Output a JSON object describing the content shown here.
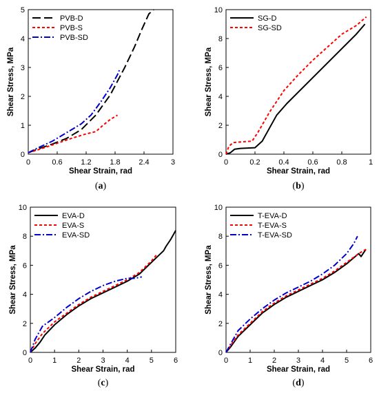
{
  "chart_data": [
    {
      "id": "a",
      "type": "line",
      "caption_letter": "a",
      "xlabel": "Shear Strain, rad",
      "ylabel": "Shear Stress, MPa",
      "xlim": [
        0,
        3
      ],
      "ylim": [
        0,
        5
      ],
      "xticks": [
        0,
        0.6,
        1.2,
        1.8,
        2.4,
        3
      ],
      "xtick_labels": [
        "0",
        "0.6",
        "1.2",
        "1.8",
        "2.4",
        "3"
      ],
      "yticks": [
        0,
        1,
        2,
        3,
        4,
        5
      ],
      "ytick_labels": [
        "0",
        "1",
        "2",
        "3",
        "4",
        "5"
      ],
      "legend_position": "top-left",
      "series": [
        {
          "name": "PVB-D",
          "color": "#000000",
          "dash": "long",
          "x": [
            0,
            0.2,
            0.5,
            0.8,
            1.1,
            1.4,
            1.7,
            2.0,
            2.2,
            2.35,
            2.5,
            2.6
          ],
          "y": [
            0.05,
            0.18,
            0.35,
            0.55,
            0.85,
            1.35,
            2.05,
            3.0,
            3.7,
            4.3,
            4.85,
            5.0
          ]
        },
        {
          "name": "PVB-S",
          "color": "#ff0000",
          "dash": "short",
          "x": [
            0,
            0.2,
            0.5,
            0.9,
            1.2,
            1.4,
            1.55,
            1.7,
            1.85
          ],
          "y": [
            0.05,
            0.15,
            0.32,
            0.55,
            0.7,
            0.78,
            1.0,
            1.2,
            1.35
          ]
        },
        {
          "name": "PVB-SD",
          "color": "#0000cc",
          "dash": "dashdot",
          "x": [
            0,
            0.2,
            0.5,
            0.8,
            1.1,
            1.3,
            1.5,
            1.7,
            1.85,
            1.9
          ],
          "y": [
            0.05,
            0.22,
            0.45,
            0.75,
            1.05,
            1.35,
            1.8,
            2.3,
            2.75,
            2.95
          ]
        }
      ]
    },
    {
      "id": "b",
      "type": "line",
      "caption_letter": "b",
      "xlabel": "Shear Strain, rad",
      "ylabel": "Shear Stress, MPa",
      "xlim": [
        0,
        1
      ],
      "ylim": [
        0,
        10
      ],
      "xticks": [
        0,
        0.2,
        0.4,
        0.6,
        0.8,
        1
      ],
      "xtick_labels": [
        "0",
        "0.2",
        "0.4",
        "0.6",
        "0.8",
        "1"
      ],
      "yticks": [
        0,
        2,
        4,
        6,
        8,
        10
      ],
      "ytick_labels": [
        "0",
        "2",
        "4",
        "6",
        "8",
        "10"
      ],
      "legend_position": "top-left",
      "series": [
        {
          "name": "SG-D",
          "color": "#000000",
          "dash": "solid",
          "x": [
            0,
            0.03,
            0.06,
            0.1,
            0.2,
            0.25,
            0.3,
            0.35,
            0.42,
            0.5,
            0.6,
            0.7,
            0.8,
            0.9,
            0.96
          ],
          "y": [
            0,
            0.1,
            0.35,
            0.4,
            0.45,
            0.9,
            1.8,
            2.7,
            3.5,
            4.3,
            5.3,
            6.3,
            7.3,
            8.3,
            9.0
          ]
        },
        {
          "name": "SG-SD",
          "color": "#ff0000",
          "dash": "short",
          "x": [
            0,
            0.02,
            0.05,
            0.1,
            0.18,
            0.22,
            0.3,
            0.4,
            0.5,
            0.6,
            0.7,
            0.8,
            0.9,
            0.97
          ],
          "y": [
            0,
            0.55,
            0.8,
            0.85,
            0.9,
            1.5,
            2.9,
            4.4,
            5.5,
            6.5,
            7.4,
            8.3,
            8.9,
            9.5
          ]
        }
      ]
    },
    {
      "id": "c",
      "type": "line",
      "caption_letter": "c",
      "xlabel": "Shear Strain, rad",
      "ylabel": "Shear Stress, MPa",
      "xlim": [
        0,
        6
      ],
      "ylim": [
        0,
        10
      ],
      "xticks": [
        0,
        1,
        2,
        3,
        4,
        5,
        6
      ],
      "xtick_labels": [
        "0",
        "1",
        "2",
        "3",
        "4",
        "5",
        "6"
      ],
      "yticks": [
        0,
        2,
        4,
        6,
        8,
        10
      ],
      "ytick_labels": [
        "0",
        "2",
        "4",
        "6",
        "8",
        "10"
      ],
      "legend_position": "top-left",
      "series": [
        {
          "name": "EVA-D",
          "color": "#000000",
          "dash": "solid",
          "x": [
            0,
            0.2,
            0.4,
            0.6,
            1.0,
            1.5,
            2.0,
            2.5,
            3.0,
            3.5,
            4.0,
            4.5,
            5.0,
            5.5,
            5.6,
            5.8,
            6.0
          ],
          "y": [
            0,
            0.3,
            0.7,
            1.2,
            1.9,
            2.6,
            3.2,
            3.7,
            4.1,
            4.5,
            4.9,
            5.4,
            6.2,
            7.0,
            7.3,
            7.8,
            8.4
          ]
        },
        {
          "name": "EVA-S",
          "color": "#ff0000",
          "dash": "short",
          "x": [
            0,
            0.2,
            0.5,
            1.0,
            1.5,
            2.0,
            2.5,
            3.0,
            3.5,
            4.0,
            4.5,
            5.0,
            5.2
          ],
          "y": [
            0,
            0.6,
            1.3,
            2.1,
            2.7,
            3.3,
            3.8,
            4.2,
            4.6,
            5.0,
            5.5,
            6.3,
            6.7
          ]
        },
        {
          "name": "EVA-SD",
          "color": "#0000cc",
          "dash": "dashdot",
          "x": [
            0,
            0.2,
            0.5,
            1.0,
            1.5,
            2.0,
            2.5,
            3.0,
            3.5,
            4.0,
            4.3,
            4.6
          ],
          "y": [
            0,
            0.9,
            1.8,
            2.4,
            3.1,
            3.7,
            4.2,
            4.6,
            4.9,
            5.1,
            5.1,
            5.2
          ]
        }
      ]
    },
    {
      "id": "d",
      "type": "line",
      "caption_letter": "d",
      "xlabel": "Shear Strain, rad",
      "ylabel": "Shear Stress, MPa",
      "xlim": [
        0,
        6
      ],
      "ylim": [
        0,
        10
      ],
      "xticks": [
        0,
        1,
        2,
        3,
        4,
        5,
        6
      ],
      "xtick_labels": [
        "0",
        "1",
        "2",
        "3",
        "4",
        "5",
        "6"
      ],
      "yticks": [
        0,
        2,
        4,
        6,
        8,
        10
      ],
      "ytick_labels": [
        "0",
        "2",
        "4",
        "6",
        "8",
        "10"
      ],
      "legend_position": "top-left",
      "series": [
        {
          "name": "T-EVA-D",
          "color": "#000000",
          "dash": "solid",
          "x": [
            0,
            0.2,
            0.5,
            1.0,
            1.5,
            2.0,
            2.5,
            3.0,
            3.5,
            4.0,
            4.5,
            5.0,
            5.5,
            5.6,
            5.8
          ],
          "y": [
            0,
            0.4,
            1.1,
            1.9,
            2.7,
            3.3,
            3.8,
            4.2,
            4.6,
            5.0,
            5.5,
            6.1,
            6.8,
            6.6,
            7.1
          ]
        },
        {
          "name": "T-EVA-S",
          "color": "#ff0000",
          "dash": "short",
          "x": [
            0,
            0.2,
            0.5,
            1.0,
            1.5,
            2.0,
            2.5,
            3.0,
            3.5,
            4.0,
            4.5,
            5.0,
            5.5,
            5.8
          ],
          "y": [
            0,
            0.5,
            1.2,
            2.0,
            2.8,
            3.4,
            3.9,
            4.3,
            4.7,
            5.1,
            5.6,
            6.2,
            6.8,
            7.1
          ]
        },
        {
          "name": "T-EVA-SD",
          "color": "#0000cc",
          "dash": "dashdot",
          "x": [
            0,
            0.2,
            0.5,
            1.0,
            1.5,
            2.0,
            2.5,
            3.0,
            3.5,
            4.0,
            4.5,
            5.0,
            5.3,
            5.45
          ],
          "y": [
            0,
            0.6,
            1.5,
            2.3,
            3.0,
            3.6,
            4.1,
            4.5,
            4.9,
            5.4,
            6.0,
            6.8,
            7.5,
            8.0
          ]
        }
      ]
    }
  ]
}
